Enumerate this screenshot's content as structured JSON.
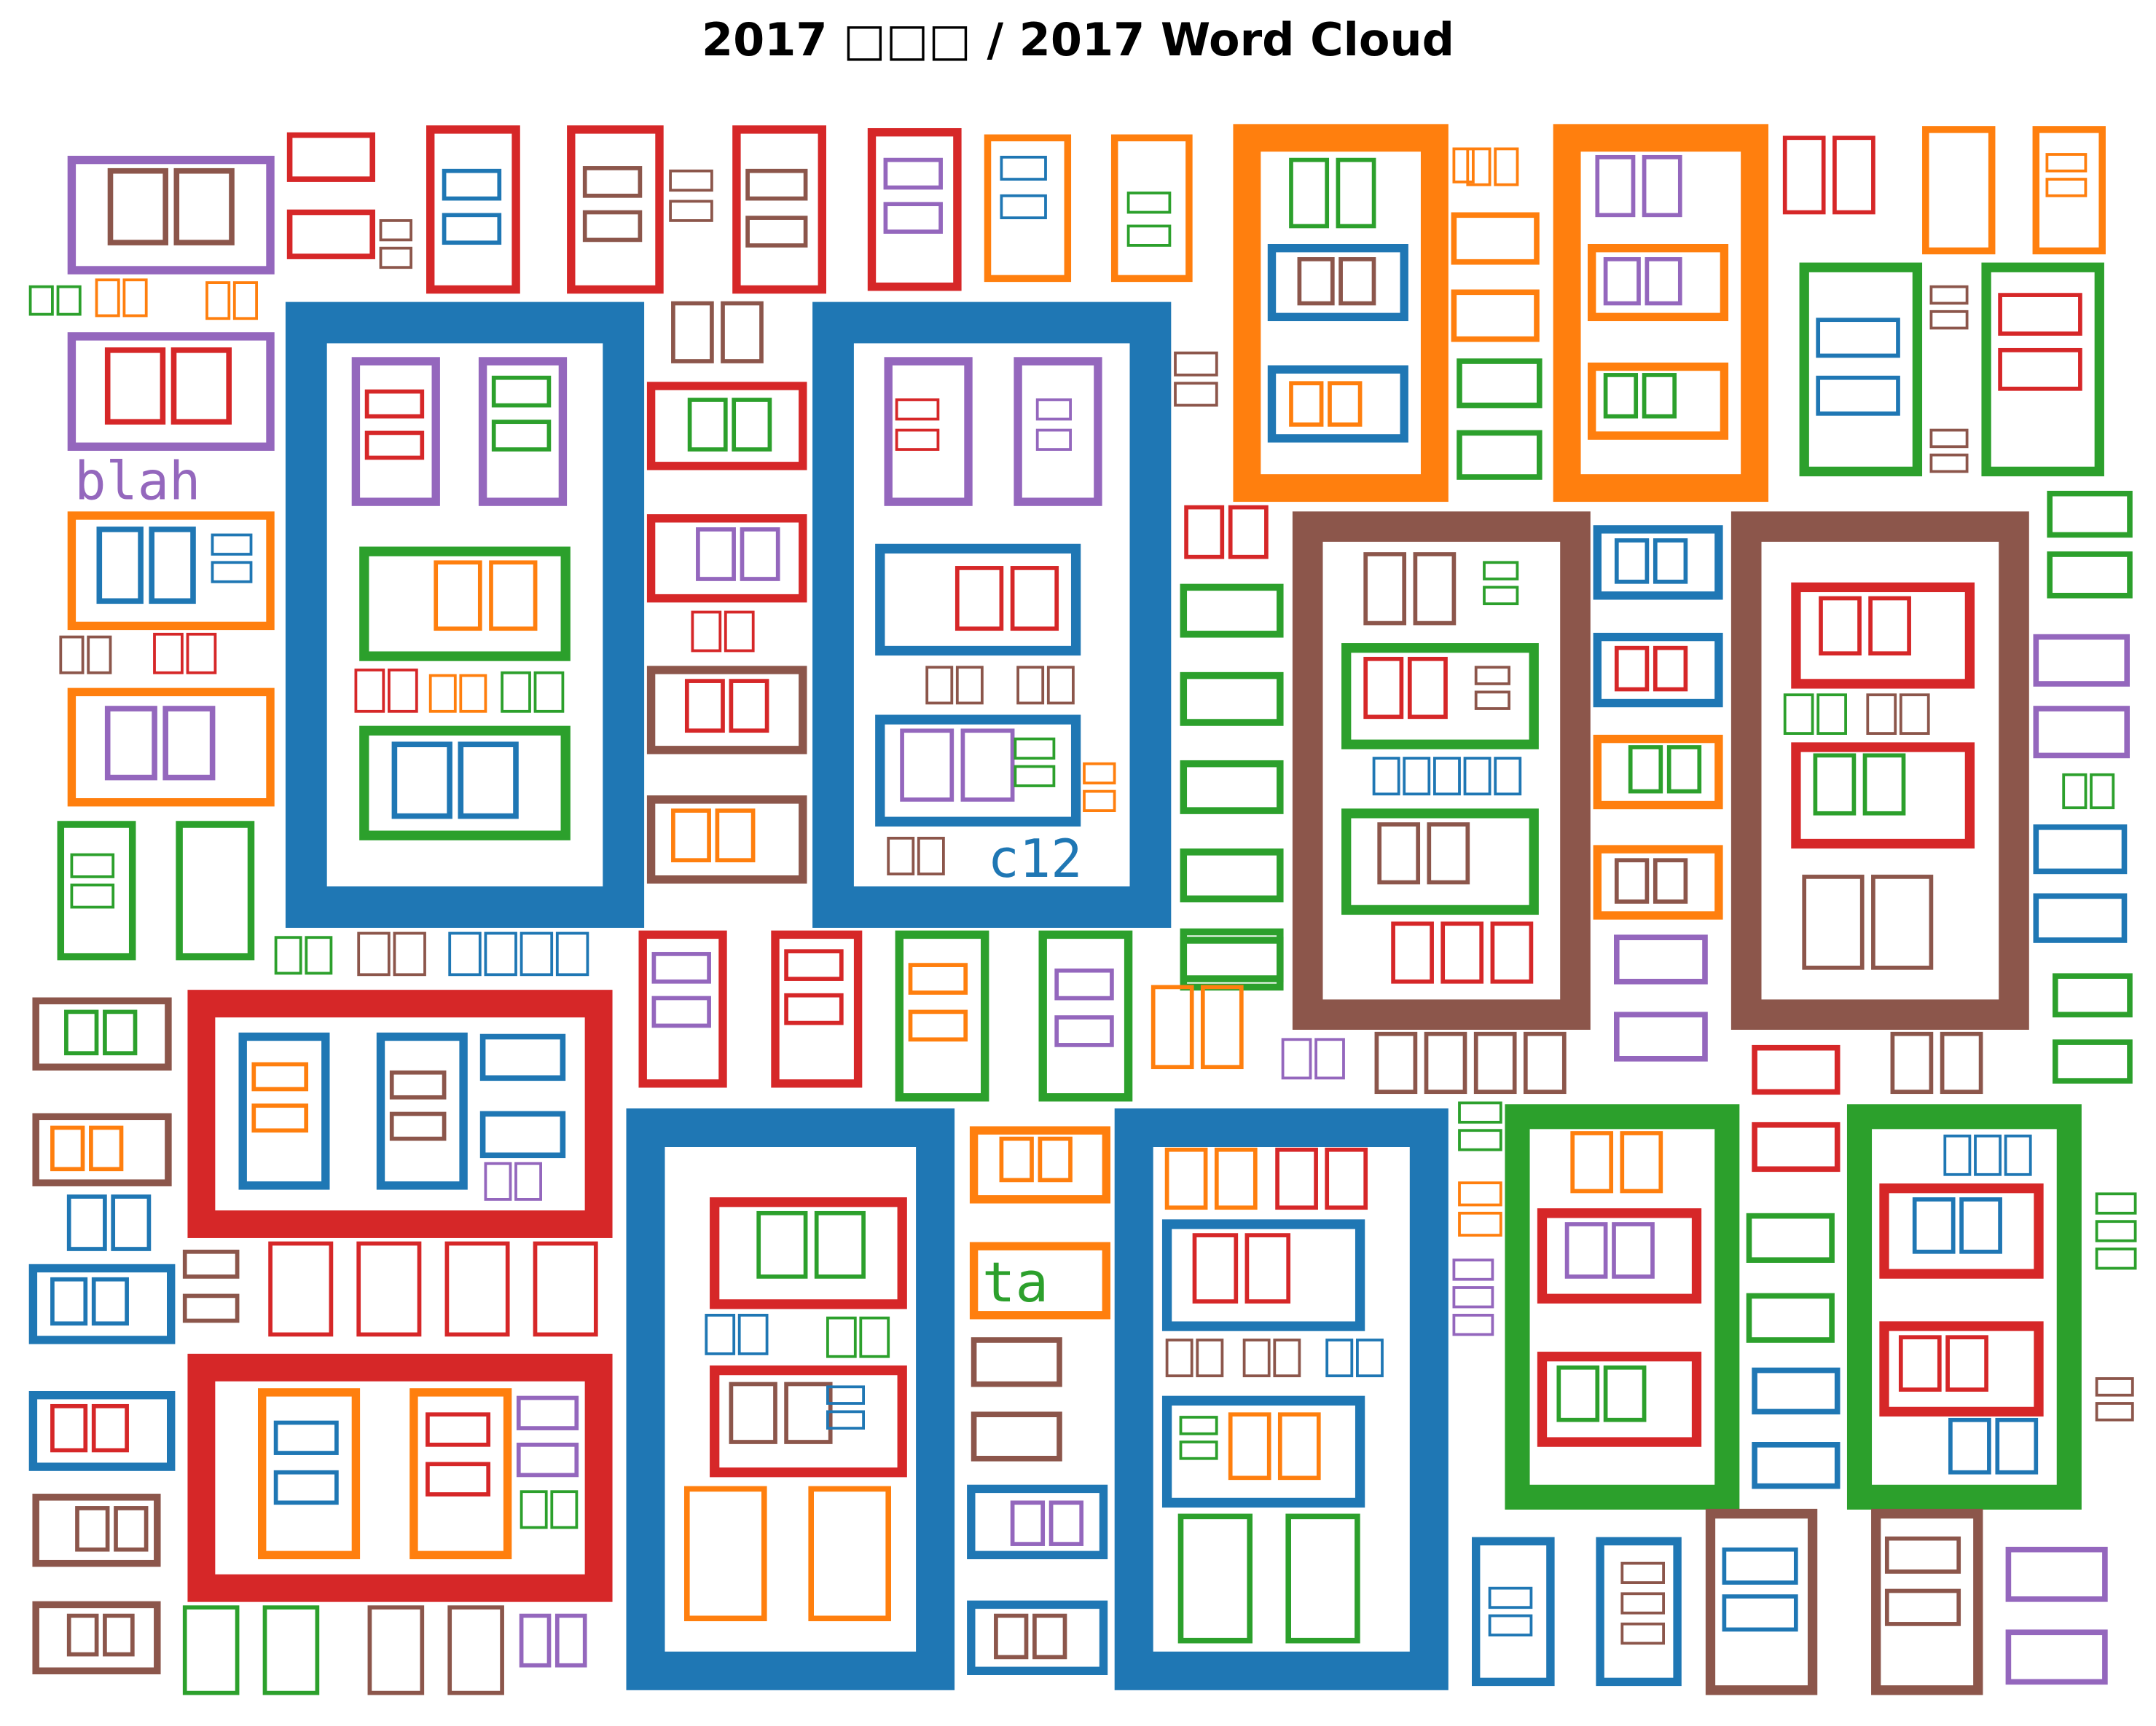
{
  "chart_data": {
    "type": "wordcloud",
    "title": "2017 □□□ / 2017 Word Cloud",
    "palette": {
      "blue": "#1f77b4",
      "orange": "#ff7f0e",
      "green": "#2ca02c",
      "red": "#d62728",
      "purple": "#9467bd",
      "brown": "#8c564b"
    },
    "notes": "Most words render as missing-glyph tofu boxes; only Latin words are legible.",
    "legible_words": [
      {
        "text": "blah",
        "color": "purple"
      },
      {
        "text": "c12",
        "color": "blue"
      },
      {
        "text": "ta",
        "color": "green"
      }
    ]
  }
}
